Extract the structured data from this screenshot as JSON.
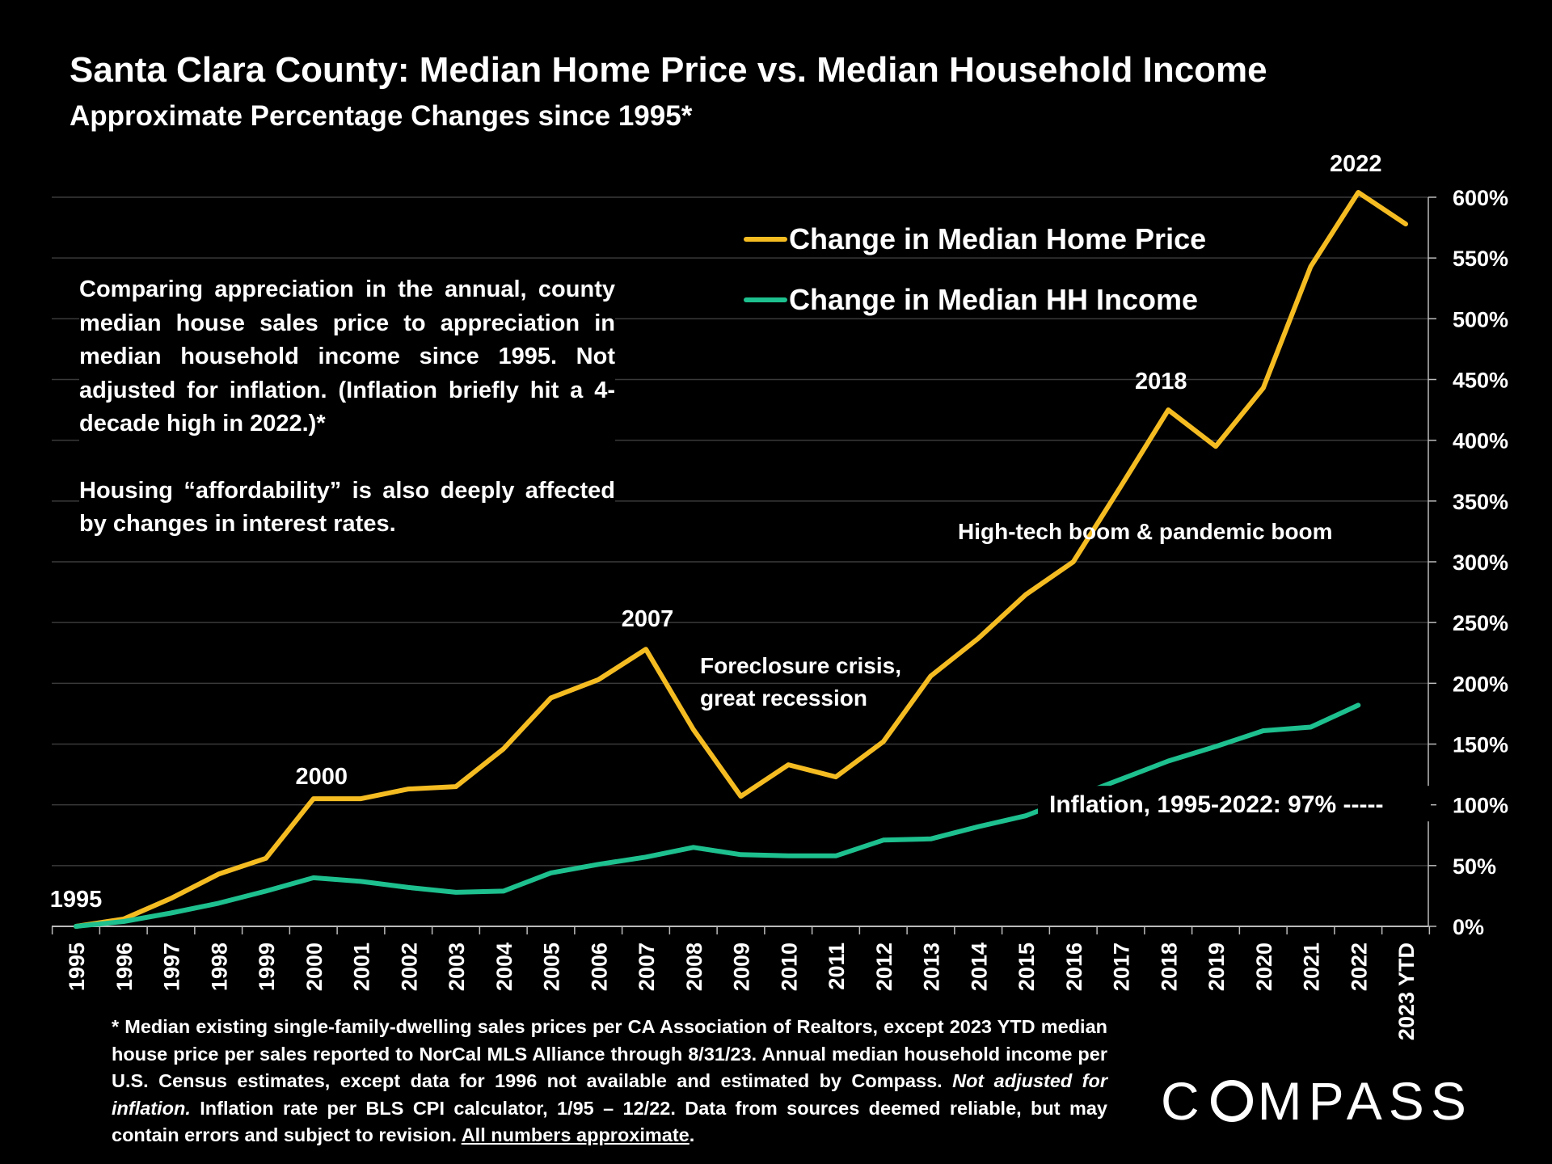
{
  "header": {
    "title": "Santa Clara County: Median Home Price vs. Median Household Income",
    "subtitle": "Approximate Percentage Changes since 1995*"
  },
  "explainer": {
    "para1": "Comparing appreciation in the annual, county median house sales price to appreciation in median household income since 1995. Not adjusted for inflation. (Inflation briefly hit a 4-decade high in 2022.)*",
    "para2": "Housing “affordability” is also deeply affected by changes in interest rates."
  },
  "footnote": {
    "part1": "* Median existing single-family-dwelling sales prices per CA Association of Realtors, except 2023 YTD median house price per sales reported to NorCal MLS Alliance through 8/31/23. Annual median household income per U.S. Census estimates, except data for 1996 not available and estimated by Compass. ",
    "italic": "Not adjusted for inflation.",
    "part2": " Inflation rate per BLS CPI calculator, 1/95 – 12/22. Data from sources deemed reliable, but may contain errors and subject to revision. ",
    "underline": "All numbers approximate",
    "end": "."
  },
  "logo": {
    "left": "C",
    "right": "MPASS"
  },
  "colors": {
    "home": "#F5BC22",
    "income": "#1DC08E",
    "grid": "#3a3a3a",
    "background": "#000000"
  },
  "chart_data": {
    "type": "line",
    "title": "Santa Clara County: Median Home Price vs. Median Household Income",
    "subtitle": "Approximate Percentage Changes since 1995*",
    "categories": [
      "1995",
      "1996",
      "1997",
      "1998",
      "1999",
      "2000",
      "2001",
      "2002",
      "2003",
      "2004",
      "2005",
      "2006",
      "2007",
      "2008",
      "2009",
      "2010",
      "2011",
      "2012",
      "2013",
      "2014",
      "2015",
      "2016",
      "2017",
      "2018",
      "2019",
      "2020",
      "2021",
      "2022",
      "2023 YTD"
    ],
    "series": [
      {
        "name": "Change in Median Home Price",
        "color": "#F5BC22",
        "values": [
          0,
          6,
          23,
          43,
          56,
          105,
          105,
          113,
          115,
          146,
          188,
          203,
          228,
          162,
          107,
          133,
          123,
          152,
          206,
          237,
          273,
          300,
          362,
          425,
          395,
          443,
          543,
          604,
          578
        ]
      },
      {
        "name": "Change in Median HH Income",
        "color": "#1DC08E",
        "values": [
          0,
          4,
          11,
          19,
          29,
          40,
          37,
          32,
          28,
          29,
          44,
          51,
          57,
          65,
          59,
          58,
          58,
          71,
          72,
          82,
          91,
          106,
          121,
          136,
          148,
          161,
          164,
          182,
          null
        ]
      }
    ],
    "y_axis": {
      "min": 0,
      "max": 600,
      "step": 50,
      "tick_labels": [
        "0%",
        "50%",
        "100%",
        "150%",
        "200%",
        "250%",
        "300%",
        "350%",
        "400%",
        "450%",
        "500%",
        "550%",
        "600%"
      ],
      "position": "right"
    },
    "grid": true,
    "legend": {
      "position": "top-center",
      "items": [
        "Change in Median Home Price",
        "Change in Median HH Income"
      ]
    },
    "inflation_reference": {
      "value": 97,
      "label": "Inflation, 1995-2022:  97% -----"
    },
    "annotations": [
      {
        "text": "1995",
        "year": "1995"
      },
      {
        "text": "2000",
        "year": "2000"
      },
      {
        "text": "2007",
        "year": "2007"
      },
      {
        "text": "2018",
        "year": "2018"
      },
      {
        "text": "2022",
        "year": "2022"
      },
      {
        "text": "Foreclosure crisis,",
        "year": "2008"
      },
      {
        "text": "great recession",
        "year": "2008"
      },
      {
        "text": "High-tech boom & pandemic boom",
        "year": "2017"
      }
    ]
  }
}
